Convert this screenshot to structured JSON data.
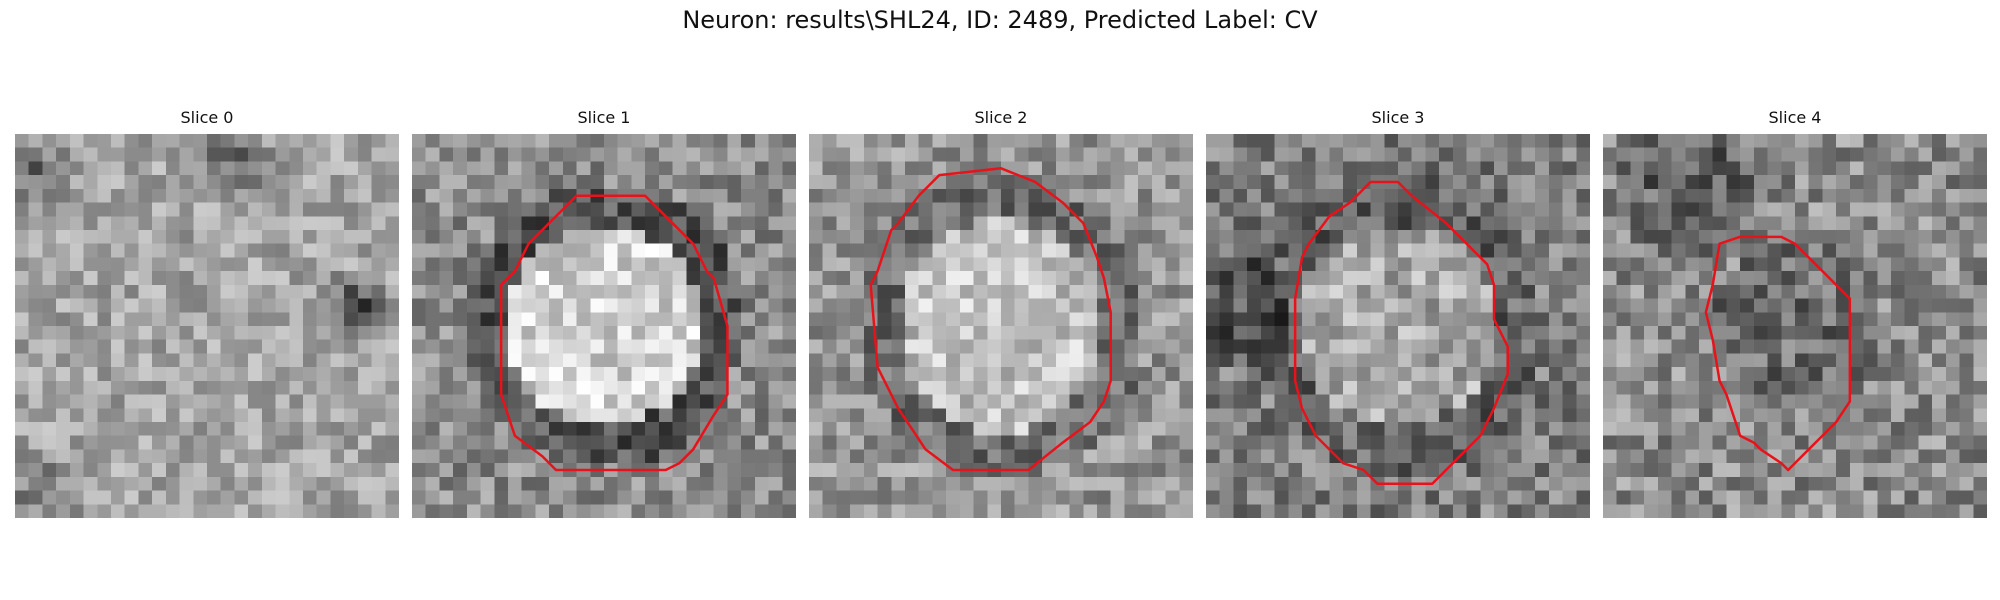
{
  "figure": {
    "title": "Neuron: results\\SHL24, ID: 2489, Predicted Label: CV"
  },
  "slices": [
    {
      "label": "Slice 0",
      "has_contour": false,
      "center_brightness": "mixed"
    },
    {
      "label": "Slice 1",
      "has_contour": true,
      "center_brightness": "bright"
    },
    {
      "label": "Slice 2",
      "has_contour": true,
      "center_brightness": "bright"
    },
    {
      "label": "Slice 3",
      "has_contour": true,
      "center_brightness": "medium"
    },
    {
      "label": "Slice 4",
      "has_contour": true,
      "center_brightness": "dark"
    }
  ],
  "colors": {
    "contour": "#e8121a"
  }
}
